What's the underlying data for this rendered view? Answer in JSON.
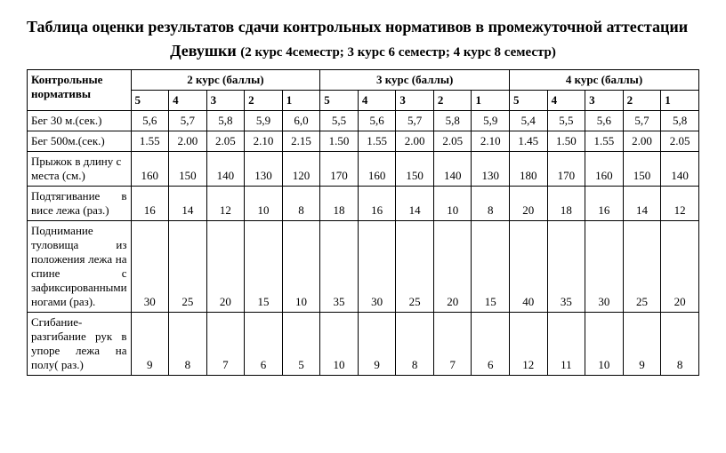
{
  "title": "Таблица оценки результатов сдачи контрольных нормативов в  промежуточной аттестации",
  "subtitle_bold": "Девушки ",
  "subtitle_small": "(2 курс 4семестр; 3 курс 6 семестр; 4 курс 8 семестр)",
  "headers": {
    "rowhead": "Контрольные нормативы",
    "course2": "2 курс (баллы)",
    "course3": "3 курс (баллы)",
    "course4": "4 курс (баллы)",
    "scores": [
      "5",
      "4",
      "3",
      "2",
      "1",
      "5",
      "4",
      "3",
      "2",
      "1",
      "5",
      "4",
      "3",
      "2",
      "1"
    ]
  },
  "rows": [
    {
      "label": "Бег 30 м.(сек.)",
      "vals": [
        "5,6",
        "5,7",
        "5,8",
        "5,9",
        "6,0",
        "5,5",
        "5,6",
        "5,7",
        "5,8",
        "5,9",
        "5,4",
        "5,5",
        "5,6",
        "5,7",
        "5,8"
      ]
    },
    {
      "label": "Бег 500м.(сек.)",
      "vals": [
        "1.55",
        "2.00",
        "2.05",
        "2.10",
        "2.15",
        "1.50",
        "1.55",
        "2.00",
        "2.05",
        "2.10",
        "1.45",
        "1.50",
        "1.55",
        "2.00",
        "2.05"
      ]
    },
    {
      "label": "Прыжок в длину с места (см.)",
      "vals": [
        "160",
        "150",
        "140",
        "130",
        "120",
        "170",
        "160",
        "150",
        "140",
        "130",
        "180",
        "170",
        "160",
        "150",
        "140"
      ]
    },
    {
      "label": "Подтягивание в висе лежа (раз.)",
      "justify": true,
      "vals": [
        "16",
        "14",
        "12",
        "10",
        "8",
        "18",
        "16",
        "14",
        "10",
        "8",
        "20",
        "18",
        "16",
        "14",
        "12"
      ]
    },
    {
      "label": "Поднимание туловища из положения лежа на спине с зафиксированными ногами (раз).",
      "justify": true,
      "vals": [
        "30",
        "25",
        "20",
        "15",
        "10",
        "35",
        "30",
        "25",
        "20",
        "15",
        "40",
        "35",
        "30",
        "25",
        "20"
      ]
    },
    {
      "label": "Сгибание-разгибание рук в упоре лежа на полу( раз.)",
      "justify": true,
      "vals": [
        "9",
        "8",
        "7",
        "6",
        "5",
        "10",
        "9",
        "8",
        "7",
        "6",
        "12",
        "11",
        "10",
        "9",
        "8"
      ]
    }
  ]
}
